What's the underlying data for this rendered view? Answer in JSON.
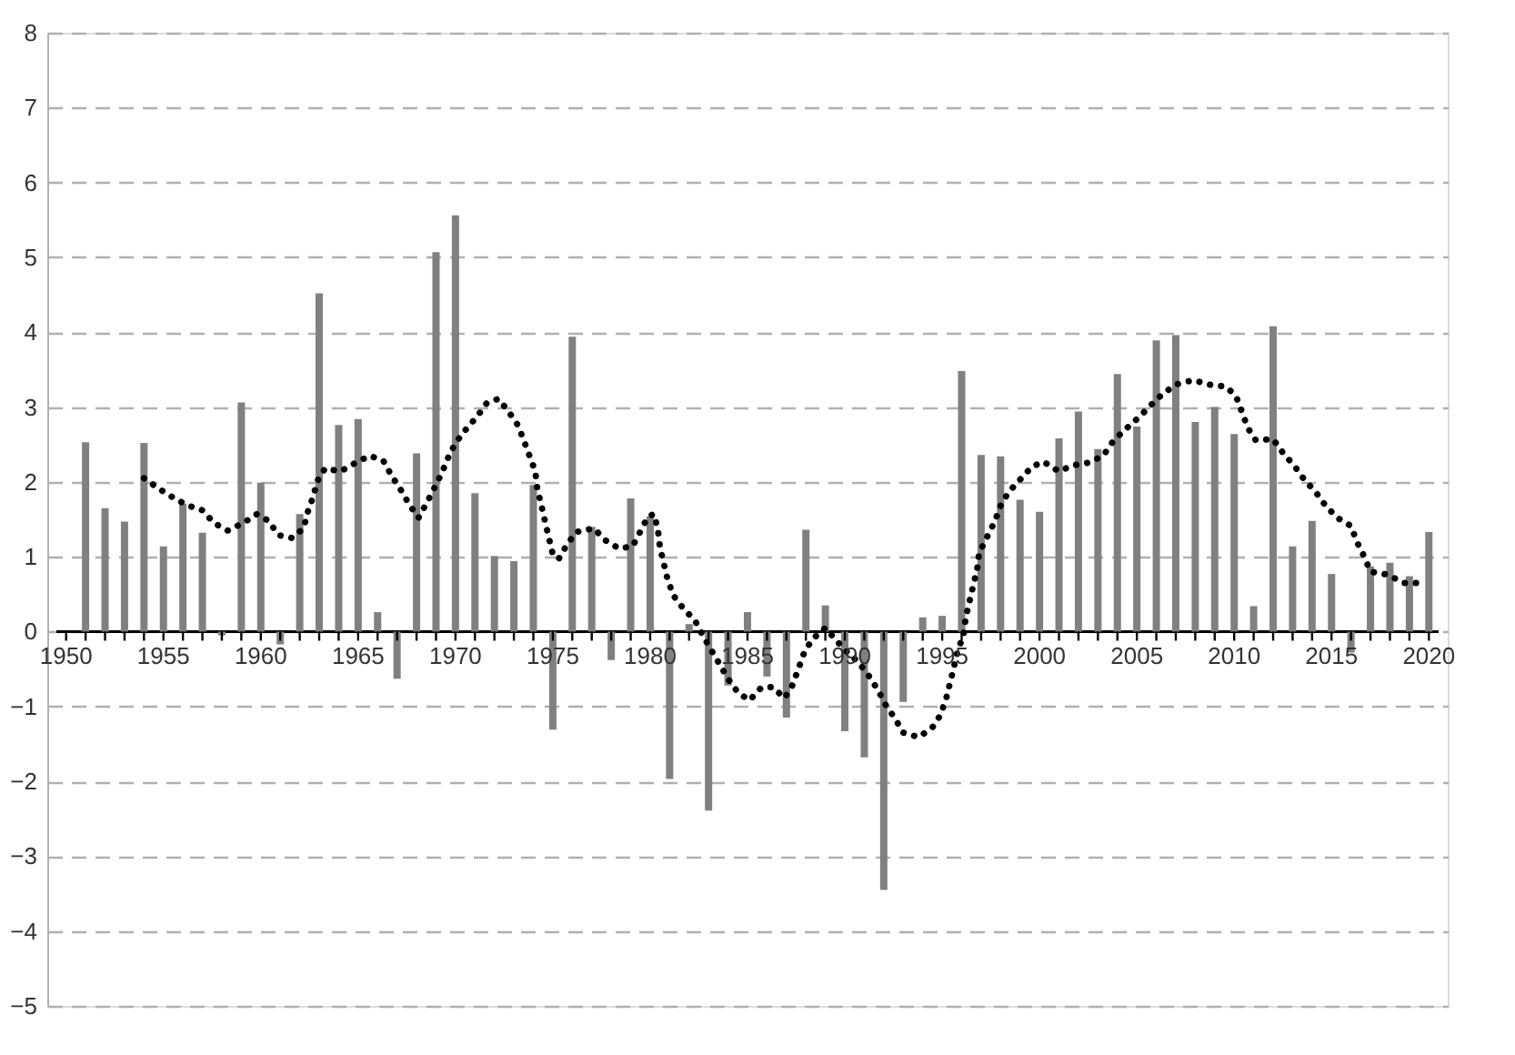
{
  "chart_data": {
    "type": "bar",
    "x": [
      1951,
      1952,
      1953,
      1954,
      1955,
      1956,
      1957,
      1958,
      1959,
      1960,
      1961,
      1962,
      1963,
      1964,
      1965,
      1966,
      1967,
      1968,
      1969,
      1970,
      1971,
      1972,
      1973,
      1974,
      1975,
      1976,
      1977,
      1978,
      1979,
      1980,
      1981,
      1982,
      1983,
      1984,
      1985,
      1986,
      1987,
      1988,
      1989,
      1990,
      1991,
      1992,
      1993,
      1994,
      1995,
      1996,
      1997,
      1998,
      1999,
      2000,
      2001,
      2002,
      2003,
      2004,
      2005,
      2006,
      2007,
      2008,
      2009,
      2010,
      2011,
      2012,
      2013,
      2014,
      2015,
      2016,
      2017,
      2018,
      2019,
      2020
    ],
    "xlim": [
      1949.5,
      2020.5
    ],
    "xticks": [
      1950,
      {
        "value": 1951,
        "label": null
      },
      {
        "value": 1952,
        "label": null
      },
      {
        "value": 1953,
        "label": null
      },
      {
        "value": 1954,
        "label": null
      },
      1955,
      {
        "value": 1956,
        "label": null
      },
      {
        "value": 1957,
        "label": null
      },
      {
        "value": 1958,
        "label": null
      },
      {
        "value": 1959,
        "label": null
      },
      1960,
      {
        "value": 1961,
        "label": null
      },
      {
        "value": 1962,
        "label": null
      },
      {
        "value": 1963,
        "label": null
      },
      {
        "value": 1964,
        "label": null
      },
      1965,
      {
        "value": 1966,
        "label": null
      },
      {
        "value": 1967,
        "label": null
      },
      {
        "value": 1968,
        "label": null
      },
      {
        "value": 1969,
        "label": null
      },
      1970,
      {
        "value": 1971,
        "label": null
      },
      {
        "value": 1972,
        "label": null
      },
      {
        "value": 1973,
        "label": null
      },
      {
        "value": 1974,
        "label": null
      },
      1975,
      {
        "value": 1976,
        "label": null
      },
      {
        "value": 1977,
        "label": null
      },
      {
        "value": 1978,
        "label": null
      },
      {
        "value": 1979,
        "label": null
      },
      1980,
      {
        "value": 1981,
        "label": null
      },
      {
        "value": 1982,
        "label": null
      },
      {
        "value": 1983,
        "label": null
      },
      {
        "value": 1984,
        "label": null
      },
      1985,
      {
        "value": 1986,
        "label": null
      },
      {
        "value": 1987,
        "label": null
      },
      {
        "value": 1988,
        "label": null
      },
      {
        "value": 1989,
        "label": null
      },
      1990,
      {
        "value": 1991,
        "label": null
      },
      {
        "value": 1992,
        "label": null
      },
      {
        "value": 1993,
        "label": null
      },
      {
        "value": 1994,
        "label": null
      },
      1995,
      {
        "value": 1996,
        "label": null
      },
      {
        "value": 1997,
        "label": null
      },
      {
        "value": 1998,
        "label": null
      },
      {
        "value": 1999,
        "label": null
      },
      2000,
      {
        "value": 2001,
        "label": null
      },
      {
        "value": 2002,
        "label": null
      },
      {
        "value": 2003,
        "label": null
      },
      {
        "value": 2004,
        "label": null
      },
      2005,
      {
        "value": 2006,
        "label": null
      },
      {
        "value": 2007,
        "label": null
      },
      {
        "value": 2008,
        "label": null
      },
      {
        "value": 2009,
        "label": null
      },
      2010,
      {
        "value": 2011,
        "label": null
      },
      {
        "value": 2012,
        "label": null
      },
      {
        "value": 2013,
        "label": null
      },
      {
        "value": 2014,
        "label": null
      },
      2015,
      {
        "value": 2016,
        "label": null
      },
      {
        "value": 2017,
        "label": null
      },
      {
        "value": 2018,
        "label": null
      },
      {
        "value": 2019,
        "label": null
      },
      2020
    ],
    "ylim": [
      -5,
      8
    ],
    "yticks": [
      -5,
      -4,
      -3,
      -2,
      -1,
      0,
      1,
      2,
      3,
      4,
      5,
      6,
      7,
      8
    ],
    "grid": "y",
    "series": [
      {
        "color": "#808080",
        "values": [
          2.53,
          1.65,
          1.47,
          2.52,
          1.14,
          1.71,
          1.32,
          -0.05,
          3.06,
          1.99,
          -0.17,
          1.57,
          4.52,
          2.76,
          2.84,
          0.26,
          -0.63,
          2.38,
          5.07,
          5.56,
          1.85,
          1.01,
          0.94,
          1.96,
          -1.31,
          3.94,
          1.4,
          -0.38,
          1.78,
          1.54,
          -1.97,
          0.1,
          -2.39,
          -0.72,
          0.26,
          -0.6,
          -1.15,
          1.36,
          0.35,
          -1.33,
          -1.68,
          -3.45,
          -0.94,
          0.19,
          0.21,
          3.48,
          2.36,
          2.34,
          1.76,
          1.6,
          2.58,
          2.94,
          2.44,
          3.44,
          2.74,
          3.89,
          3.96,
          2.8,
          3.0,
          2.64,
          0.34,
          4.08,
          1.14,
          1.48,
          0.77,
          -0.28,
          0.87,
          0.92,
          0.74,
          1.33
        ]
      },
      {
        "type": "line",
        "color": "#000000",
        "line_style": "dotted",
        "marker": "none",
        "x": [
          1954.0,
          1954.7,
          1955.5,
          1956.2,
          1957.0,
          1957.6,
          1958.3,
          1959.1,
          1959.8,
          1960.4,
          1960.9,
          1961.6,
          1962.2,
          1962.4,
          1962.7,
          1962.9,
          1963.3,
          1964.1,
          1964.9,
          1965.6,
          1966.3,
          1966.7,
          1967.2,
          1967.6,
          1968.1,
          1968.5,
          1968.9,
          1969.3,
          1969.6,
          1970.0,
          1970.5,
          1971.1,
          1971.6,
          1972.2,
          1972.7,
          1973.2,
          1973.5,
          1973.8,
          1974.1,
          1974.2,
          1974.4,
          1974.6,
          1974.8,
          1975.0,
          1975.3,
          1975.7,
          1976.2,
          1977.1,
          1977.7,
          1978.4,
          1979.1,
          1979.5,
          1979.9,
          1980.2,
          1980.4,
          1980.5,
          1980.7,
          1980.9,
          1981.2,
          1981.7,
          1982.3,
          1982.7,
          1983.1,
          1983.6,
          1984.0,
          1984.5,
          1985.1,
          1985.7,
          1986.3,
          1986.9,
          1987.3,
          1987.6,
          1987.9,
          1988.3,
          1989.0,
          1989.5,
          1990.1,
          1990.7,
          1991.2,
          1991.7,
          1992.1,
          1992.6,
          1993.0,
          1993.8,
          1994.5,
          1994.9,
          1995.2,
          1995.4,
          1995.6,
          1995.8,
          1996.1,
          1996.2,
          1996.4,
          1996.6,
          1996.8,
          1996.9,
          1997.3,
          1997.7,
          1998.0,
          1998.4,
          1999.0,
          1999.6,
          2000.2,
          2001.0,
          2001.7,
          2002.6,
          2003.3,
          2003.8,
          2004.4,
          2005.1,
          2005.7,
          2006.3,
          2007.0,
          2007.9,
          2008.7,
          2009.6,
          2010.1,
          2010.4,
          2010.7,
          2011.1,
          2012.0,
          2012.5,
          2013.1,
          2013.6,
          2014.2,
          2014.7,
          2015.3,
          2016.0,
          2016.3,
          2016.7,
          2017.0,
          2017.9,
          2018.7,
          2019.4
        ],
        "values": [
          2.05,
          1.92,
          1.79,
          1.69,
          1.62,
          1.45,
          1.35,
          1.45,
          1.57,
          1.48,
          1.29,
          1.25,
          1.38,
          1.59,
          1.81,
          2.01,
          2.18,
          2.14,
          2.26,
          2.35,
          2.28,
          2.09,
          1.89,
          1.71,
          1.52,
          1.71,
          1.91,
          2.12,
          2.31,
          2.52,
          2.69,
          2.87,
          3.05,
          3.11,
          2.95,
          2.76,
          2.56,
          2.35,
          2.14,
          1.91,
          1.7,
          1.47,
          1.25,
          1.03,
          0.97,
          1.15,
          1.33,
          1.38,
          1.22,
          1.11,
          1.14,
          1.34,
          1.54,
          1.57,
          1.36,
          1.13,
          0.91,
          0.69,
          0.48,
          0.31,
          0.15,
          -0.05,
          -0.23,
          -0.45,
          -0.63,
          -0.81,
          -0.92,
          -0.75,
          -0.74,
          -0.89,
          -0.72,
          -0.51,
          -0.29,
          -0.11,
          0.05,
          -0.1,
          -0.27,
          -0.41,
          -0.58,
          -0.78,
          -0.98,
          -1.17,
          -1.35,
          -1.41,
          -1.28,
          -1.12,
          -0.9,
          -0.69,
          -0.48,
          -0.25,
          -0.05,
          0.17,
          0.4,
          0.62,
          0.84,
          1.05,
          1.26,
          1.47,
          1.68,
          1.86,
          2.03,
          2.2,
          2.27,
          2.14,
          2.22,
          2.26,
          2.36,
          2.55,
          2.7,
          2.86,
          3.02,
          3.17,
          3.3,
          3.36,
          3.3,
          3.27,
          3.14,
          2.93,
          2.72,
          2.56,
          2.57,
          2.39,
          2.21,
          2.03,
          1.86,
          1.68,
          1.52,
          1.41,
          1.2,
          0.99,
          0.8,
          0.76,
          0.65,
          0.65
        ]
      }
    ]
  }
}
